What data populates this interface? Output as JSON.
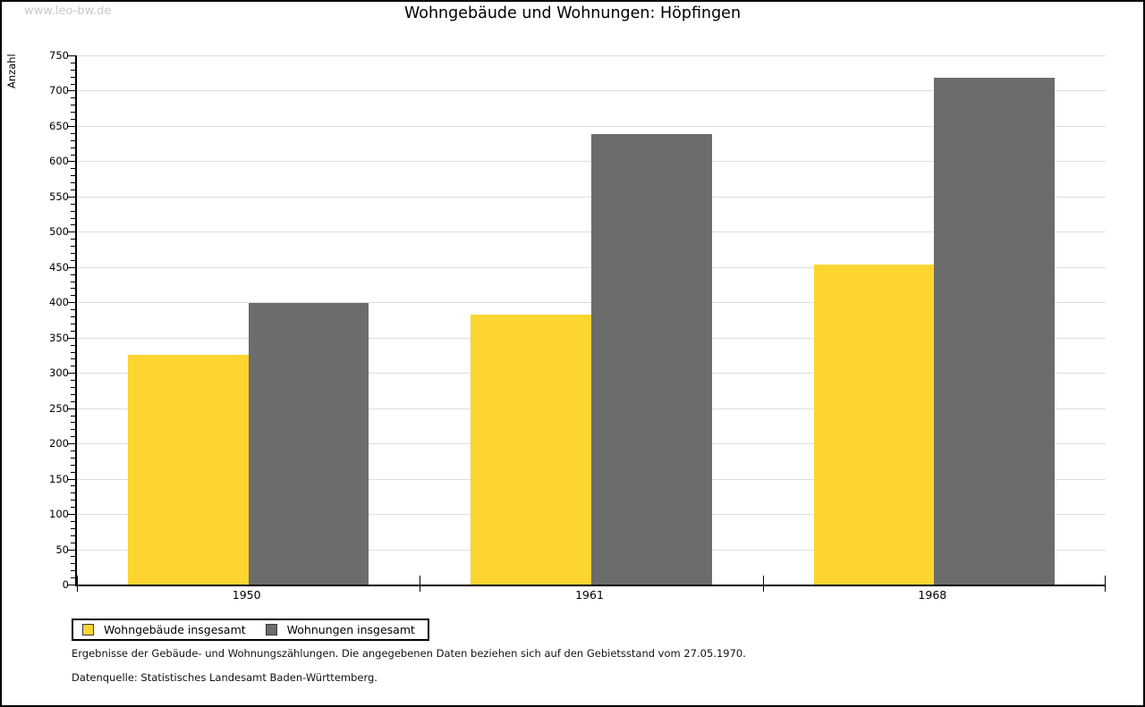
{
  "watermark": "www.leo-bw.de",
  "chart_data": {
    "type": "bar",
    "title": "Wohngebäude und Wohnungen: Höpfingen",
    "ylabel": "Anzahl",
    "xlabel": "",
    "categories": [
      "1950",
      "1961",
      "1968"
    ],
    "series": [
      {
        "name": "Wohngebäude insgesamt",
        "color": "#fcd530",
        "values": [
          325,
          383,
          453
        ]
      },
      {
        "name": "Wohnungen insgesamt",
        "color": "#6c6c6c",
        "values": [
          399,
          638,
          718
        ]
      }
    ],
    "ylim": [
      0,
      750
    ],
    "ytick_step": 50,
    "minor_tick_step": 10,
    "grid": true,
    "gridline_color": "#dedede",
    "legend_position": "bottom-left"
  },
  "footnotes": {
    "line1": "Ergebnisse der Gebäude- und Wohnungszählungen. Die angegebenen Daten beziehen sich auf den Gebietsstand vom 27.05.1970.",
    "line2": "Datenquelle: Statistisches Landesamt Baden-Württemberg."
  }
}
